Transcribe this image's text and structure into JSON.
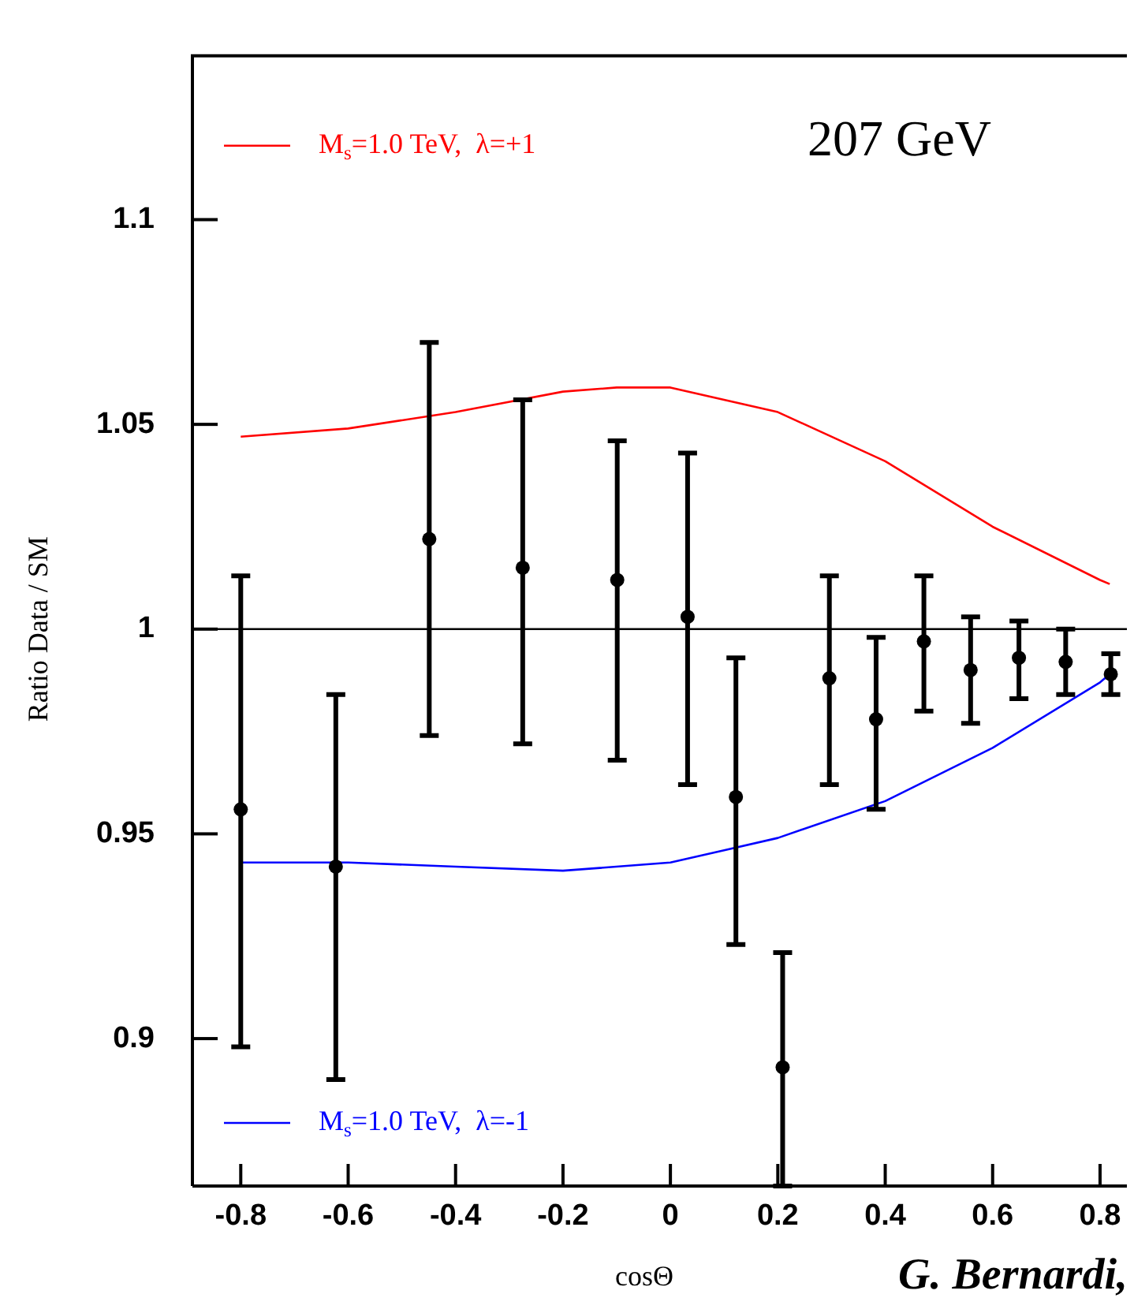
{
  "chart_data": {
    "type": "scatter",
    "xlabel": "cosΘ",
    "ylabel": "Ratio Data / SM",
    "annotations": [
      "207 GeV",
      "G. Bernardi,"
    ],
    "xlim": [
      -0.89,
      0.85
    ],
    "ylim": [
      0.864,
      1.14
    ],
    "xticks": [
      -0.8,
      -0.6,
      -0.4,
      -0.2,
      0,
      0.2,
      0.4,
      0.6,
      0.8
    ],
    "yticks": [
      0.9,
      0.95,
      1,
      1.05,
      1.1
    ],
    "grid": false,
    "legend": "left",
    "marker": "circle",
    "ref_lines": [
      {
        "axis": "y",
        "value": 1,
        "color": "#000000"
      }
    ],
    "series": [
      {
        "type": "scatter",
        "color": "#000000",
        "x": [
          -0.8,
          -0.623,
          -0.449,
          -0.275,
          -0.099,
          0.032,
          0.122,
          0.209,
          0.296,
          0.383,
          0.472,
          0.559,
          0.649,
          0.736,
          0.82
        ],
        "values": [
          0.956,
          0.942,
          1.022,
          1.015,
          1.012,
          1.003,
          0.959,
          0.893,
          0.988,
          0.978,
          0.997,
          0.99,
          0.993,
          0.992,
          0.989
        ],
        "errors": [
          [
            0.898,
            1.013
          ],
          [
            0.89,
            0.984
          ],
          [
            0.974,
            1.07
          ],
          [
            0.972,
            1.056
          ],
          [
            0.968,
            1.046
          ],
          [
            0.962,
            1.043
          ],
          [
            0.923,
            0.993
          ],
          [
            0.864,
            0.921
          ],
          [
            0.962,
            1.013
          ],
          [
            0.956,
            0.998
          ],
          [
            0.98,
            1.013
          ],
          [
            0.977,
            1.003
          ],
          [
            0.983,
            1.002
          ],
          [
            0.984,
            1.0
          ],
          [
            0.984,
            0.994
          ]
        ]
      },
      {
        "type": "line",
        "name": "M$_{s}$=1.0 TeV,  λ=+1",
        "color": "#ff0000",
        "marker": "none",
        "x": [
          -0.8,
          -0.6,
          -0.4,
          -0.2,
          -0.1,
          0,
          0.2,
          0.4,
          0.6,
          0.8,
          0.818
        ],
        "values": [
          1.047,
          1.049,
          1.053,
          1.058,
          1.059,
          1.059,
          1.053,
          1.041,
          1.025,
          1.012,
          1.011
        ]
      },
      {
        "type": "line",
        "name": "M$_{s}$=1.0 TeV,  λ=-1",
        "color": "#0000ff",
        "marker": "none",
        "x": [
          -0.8,
          -0.6,
          -0.4,
          -0.2,
          0,
          0.1,
          0.2,
          0.4,
          0.6,
          0.8,
          0.818
        ],
        "values": [
          0.943,
          0.943,
          0.942,
          0.941,
          0.943,
          0.946,
          0.949,
          0.958,
          0.971,
          0.987,
          0.989
        ]
      }
    ]
  }
}
